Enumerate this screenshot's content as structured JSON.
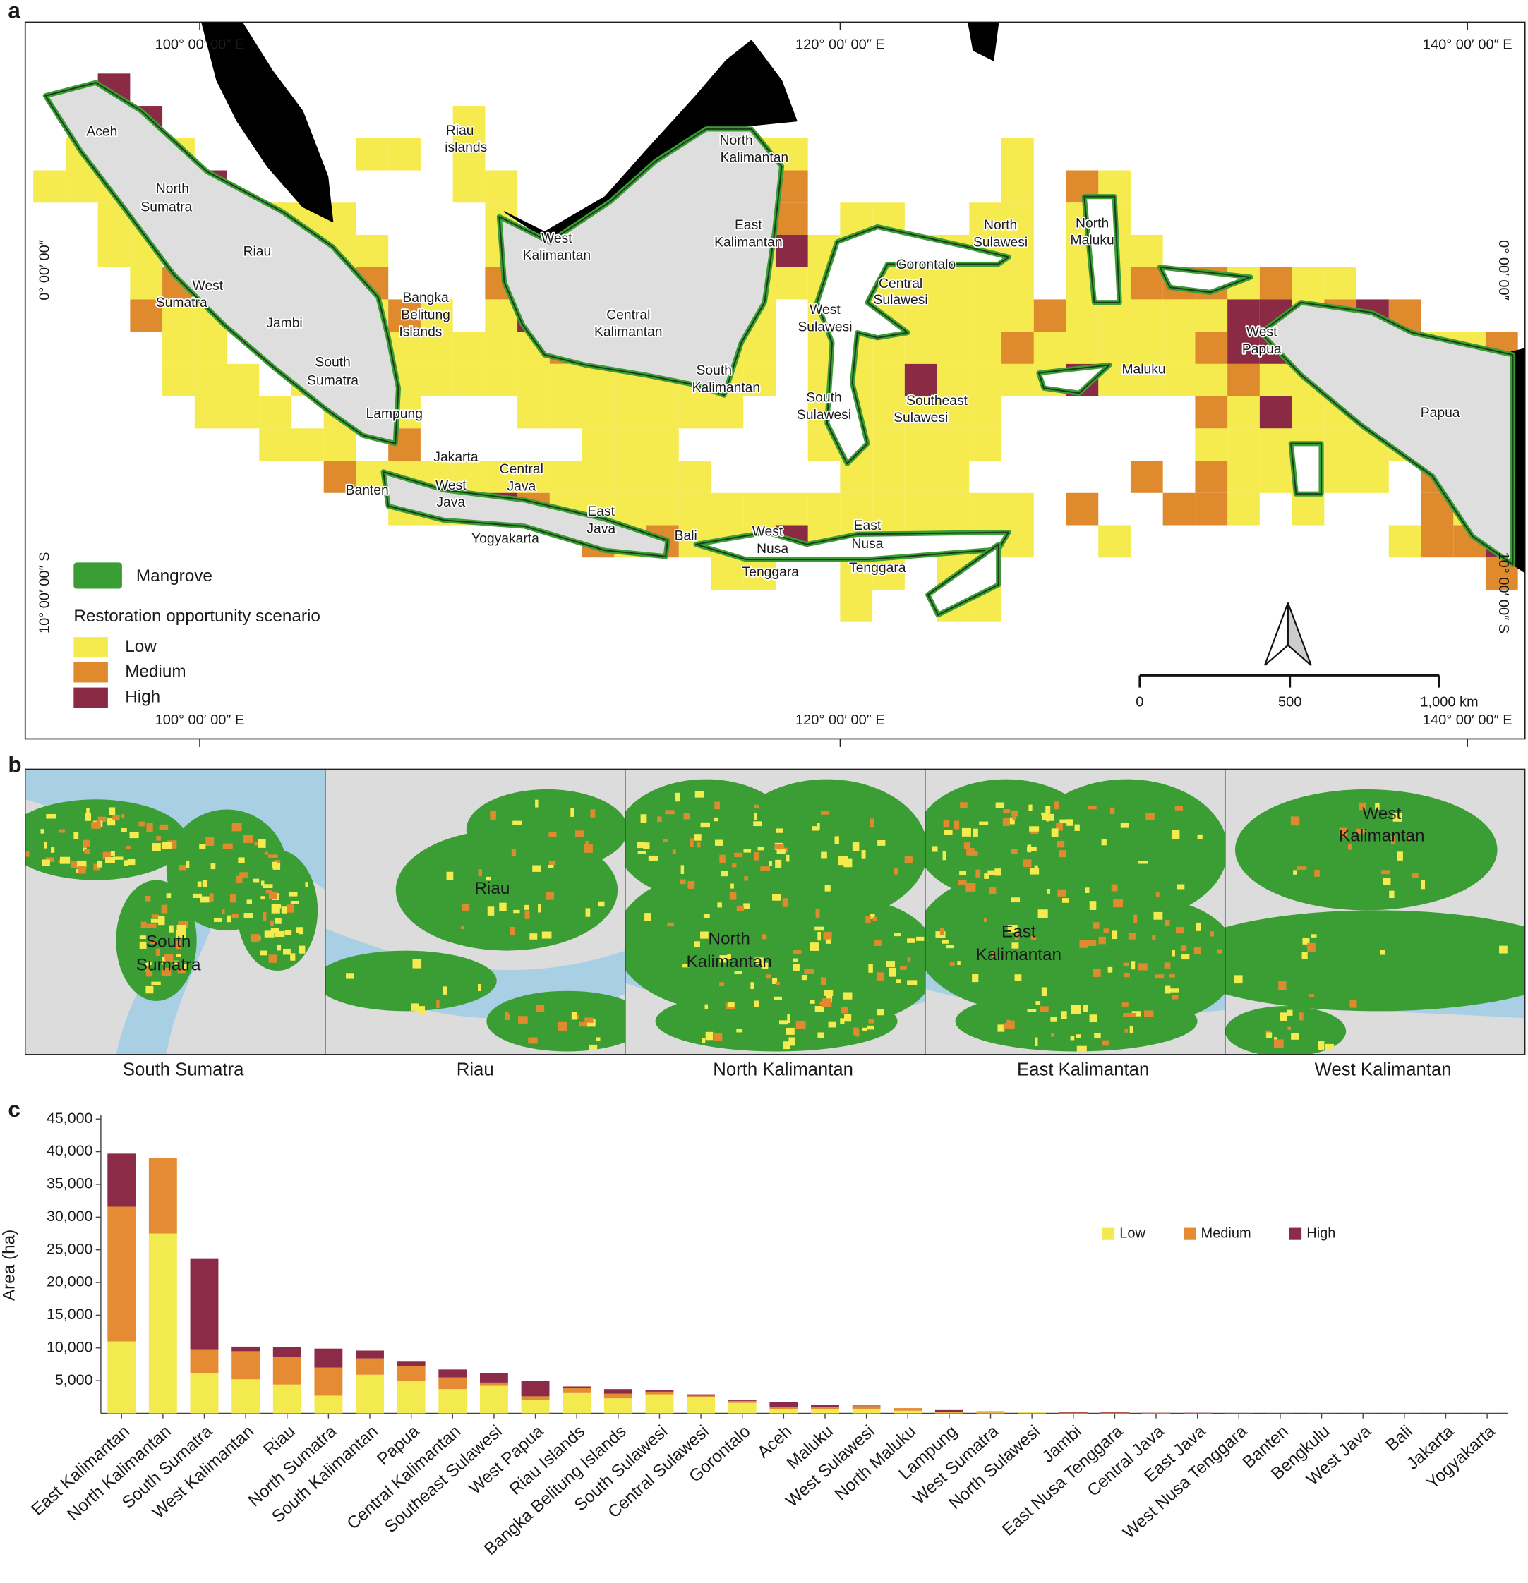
{
  "panel_labels": [
    "a",
    "b",
    "c"
  ],
  "map": {
    "coordinate_labels": {
      "top": [
        "100° 00′ 00″ E",
        "120° 00′ 00″ E",
        "140° 00′ 00″ E"
      ],
      "bottom": [
        "100° 00′ 00″ E",
        "120° 00′ 00″ E",
        "140° 00′ 00″ E"
      ],
      "left": [
        "0° 00′ 00″",
        "10° 00′ 00″ S"
      ],
      "right": [
        "0° 00′ 00″",
        "10° 00′ 00″ S"
      ]
    },
    "region_labels": [
      [
        "Aceh"
      ],
      [
        "North",
        "Sumatra"
      ],
      [
        "Riau"
      ],
      [
        "West",
        "Sumatra"
      ],
      [
        "Jambi"
      ],
      [
        "Bangka",
        "Belitung",
        "Islands"
      ],
      [
        "South",
        "Sumatra"
      ],
      [
        "Lampung"
      ],
      [
        "Banten"
      ],
      [
        "Jakarta"
      ],
      [
        "West",
        "Java"
      ],
      [
        "Central",
        "Java"
      ],
      [
        "Yogyakarta"
      ],
      [
        "East",
        "Java"
      ],
      [
        "Bali"
      ],
      [
        "West",
        "Nusa",
        "Tenggara"
      ],
      [
        "East",
        "Nusa",
        "Tenggara"
      ],
      [
        "Riau",
        "islands"
      ],
      [
        "West",
        "Kalimantan"
      ],
      [
        "Central",
        "Kalimantan"
      ],
      [
        "South",
        "Kalimantan"
      ],
      [
        "North",
        "Kalimantan"
      ],
      [
        "East",
        "Kalimantan"
      ],
      [
        "West",
        "Sulawesi"
      ],
      [
        "South",
        "Sulawesi"
      ],
      [
        "Central",
        "Sulawesi"
      ],
      [
        "Gorontalo"
      ],
      [
        "North",
        "Sulawesi"
      ],
      [
        "Southeast",
        "Sulawesi"
      ],
      [
        "North",
        "Maluku"
      ],
      [
        "Maluku"
      ],
      [
        "West",
        "Papua"
      ],
      [
        "Papua"
      ]
    ],
    "legend": {
      "mangrove": "Mangrove",
      "title": "Restoration opportunity scenario",
      "classes": [
        "Low",
        "Medium",
        "High"
      ]
    },
    "scale_bar": [
      "0",
      "500",
      "1,000 km"
    ]
  },
  "inset_maps": {
    "inner_labels": [
      [
        "South",
        "Sumatra"
      ],
      [
        "Riau"
      ],
      [
        "North",
        "Kalimantan"
      ],
      [
        "East",
        "Kalimantan"
      ],
      [
        "West",
        "Kalimantan"
      ]
    ],
    "captions": [
      "South Sumatra",
      "Riau",
      "North Kalimantan",
      "East Kalimantan",
      "West Kalimantan"
    ]
  },
  "chart_data": {
    "type": "stacked_bar",
    "ylabel": "Area (ha)",
    "categories": [
      "East Kalimantan",
      "North Kalimantan",
      "South Sumatra",
      "West Kalimantan",
      "Riau",
      "North Sumatra",
      "South Kalimantan",
      "Papua",
      "Central Kalimantan",
      "Southeast Sulawesi",
      "West Papua",
      "Riau Islands",
      "Bangka Belitung Islands",
      "South Sulawesi",
      "Central Sulawesi",
      "Gorontalo",
      "Aceh",
      "Maluku",
      "West Sulawesi",
      "North Maluku",
      "Lampung",
      "West Sumatra",
      "North Sulawesi",
      "Jambi",
      "East Nusa Tenggara",
      "Central Java",
      "East Java",
      "West Nusa Tenggara",
      "Banten",
      "Bengkulu",
      "West Java",
      "Bali",
      "Jakarta",
      "Yogyakarta"
    ],
    "series": [
      {
        "name": "Low",
        "color": "#f3ea4f",
        "values": [
          11000,
          27500,
          6200,
          5200,
          4400,
          2700,
          5900,
          5000,
          3700,
          4200,
          2000,
          3200,
          2300,
          2900,
          2500,
          1600,
          600,
          600,
          700,
          400,
          100,
          100,
          150,
          50,
          50,
          50,
          40,
          20,
          10,
          10,
          5,
          5,
          5,
          5
        ]
      },
      {
        "name": "Medium",
        "color": "#e58b33",
        "values": [
          20600,
          11500,
          3600,
          4300,
          4200,
          4300,
          2500,
          2200,
          1800,
          500,
          600,
          700,
          700,
          400,
          200,
          300,
          400,
          400,
          400,
          400,
          100,
          100,
          50,
          50,
          50,
          30,
          30,
          10,
          5,
          5,
          5,
          5,
          0,
          0
        ]
      },
      {
        "name": "High",
        "color": "#8c2b48",
        "values": [
          8100,
          0,
          13800,
          700,
          1500,
          2900,
          1200,
          700,
          1200,
          1500,
          2400,
          200,
          700,
          200,
          200,
          200,
          700,
          300,
          100,
          0,
          300,
          100,
          50,
          100,
          100,
          20,
          30,
          10,
          5,
          5,
          5,
          0,
          0,
          0
        ]
      }
    ],
    "ylim": [
      0,
      45000
    ],
    "yticks": [
      {
        "value": 5000,
        "label": "5,000"
      },
      {
        "value": 10000,
        "label": "10,000"
      },
      {
        "value": 15000,
        "label": "15,000"
      },
      {
        "value": 20000,
        "label": "20,000"
      },
      {
        "value": 25000,
        "label": "25,000"
      },
      {
        "value": 30000,
        "label": "30,000"
      },
      {
        "value": 35000,
        "label": "35,000"
      },
      {
        "value": 40000,
        "label": "40,000"
      },
      {
        "value": 45000,
        "label": "45,000"
      }
    ],
    "legend_position": "upper right"
  }
}
